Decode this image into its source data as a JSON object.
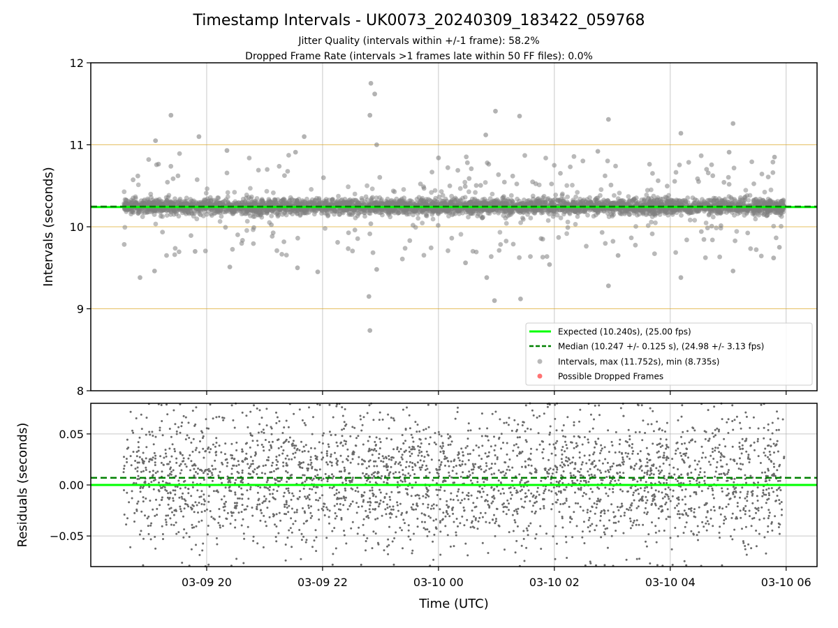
{
  "title": "Timestamp Intervals - UK0073_20240309_183422_059768",
  "subtitle_1": "Jitter Quality (intervals within +/-1 frame): 58.2%",
  "subtitle_2": "Dropped Frame Rate (intervals >1 frames late within 50 FF files): 0.0%",
  "colors": {
    "expected": "#00ff00",
    "median": "#008000",
    "points": "#808080",
    "dropped": "#ff0000",
    "hline": "#daa520",
    "grid": "#b0b0b0"
  },
  "chart_data": [
    {
      "type": "scatter",
      "ylabel": "Intervals (seconds)",
      "ylim": [
        8,
        12
      ],
      "xlim": [
        "2024-03-09T18:00",
        "2024-03-10T06:32"
      ],
      "yticks": [
        "8",
        "9",
        "10",
        "11",
        "12"
      ],
      "xticks": [
        "2024-03-09T20:00",
        "2024-03-09T22:00",
        "2024-03-10T00:00",
        "2024-03-10T02:00",
        "2024-03-10T04:00",
        "2024-03-10T06:00"
      ],
      "horizontal_reference_lines": [
        9,
        10,
        11
      ],
      "expected_value": 10.24,
      "median_value": 10.247,
      "grid": true,
      "legend_position": "lower-right",
      "legend": [
        "Expected (10.240s), (25.00 fps)",
        "Median (10.247 +/- 0.125 s), (24.98 +/- 3.13 fps)",
        "Intervals, max (11.752s), min (8.735s)",
        "Possible Dropped Frames"
      ],
      "x_start": "2024-03-09T18:34",
      "x_end": "2024-03-10T05:58",
      "n_points": 4000,
      "outliers": [
        {
          "x": "2024-03-09T19:52",
          "y": 11.1
        },
        {
          "x": "2024-03-09T19:07",
          "y": 11.05
        },
        {
          "x": "2024-03-09T19:23",
          "y": 11.36
        },
        {
          "x": "2024-03-09T20:21",
          "y": 10.93
        },
        {
          "x": "2024-03-09T21:41",
          "y": 11.1
        },
        {
          "x": "2024-03-09T21:32",
          "y": 10.91
        },
        {
          "x": "2024-03-09T22:50",
          "y": 11.75
        },
        {
          "x": "2024-03-09T22:54",
          "y": 11.62
        },
        {
          "x": "2024-03-09T22:49",
          "y": 11.36
        },
        {
          "x": "2024-03-09T22:56",
          "y": 11.0
        },
        {
          "x": "2024-03-10T00:00",
          "y": 10.84
        },
        {
          "x": "2024-03-10T00:59",
          "y": 11.41
        },
        {
          "x": "2024-03-10T00:49",
          "y": 11.12
        },
        {
          "x": "2024-03-10T01:24",
          "y": 11.35
        },
        {
          "x": "2024-03-10T02:56",
          "y": 11.31
        },
        {
          "x": "2024-03-10T02:45",
          "y": 10.92
        },
        {
          "x": "2024-03-10T04:11",
          "y": 11.14
        },
        {
          "x": "2024-03-10T05:05",
          "y": 11.26
        },
        {
          "x": "2024-03-10T05:01",
          "y": 10.91
        },
        {
          "x": "2024-03-10T05:48",
          "y": 10.85
        },
        {
          "x": "2024-03-09T18:51",
          "y": 9.38
        },
        {
          "x": "2024-03-09T19:06",
          "y": 9.46
        },
        {
          "x": "2024-03-09T20:24",
          "y": 9.51
        },
        {
          "x": "2024-03-09T21:34",
          "y": 9.5
        },
        {
          "x": "2024-03-09T21:55",
          "y": 9.45
        },
        {
          "x": "2024-03-09T22:48",
          "y": 9.15
        },
        {
          "x": "2024-03-09T22:49",
          "y": 8.735
        },
        {
          "x": "2024-03-09T22:56",
          "y": 9.48
        },
        {
          "x": "2024-03-10T00:28",
          "y": 9.56
        },
        {
          "x": "2024-03-10T00:50",
          "y": 9.38
        },
        {
          "x": "2024-03-10T00:58",
          "y": 9.1
        },
        {
          "x": "2024-03-10T01:25",
          "y": 9.12
        },
        {
          "x": "2024-03-10T01:55",
          "y": 9.54
        },
        {
          "x": "2024-03-10T02:56",
          "y": 9.28
        },
        {
          "x": "2024-03-10T03:06",
          "y": 9.65
        },
        {
          "x": "2024-03-10T04:11",
          "y": 9.38
        },
        {
          "x": "2024-03-10T05:05",
          "y": 9.46
        },
        {
          "x": "2024-03-10T05:47",
          "y": 9.62
        },
        {
          "x": "2024-03-10T05:53",
          "y": 9.75
        },
        {
          "x": "2024-03-09T19:48",
          "y": 9.7
        }
      ]
    },
    {
      "type": "scatter",
      "ylabel": "Residuals (seconds)",
      "xlabel": "Time (UTC)",
      "ylim": [
        -0.08,
        0.08
      ],
      "yticks": [
        "−0.05",
        "0.00",
        "0.05"
      ],
      "xtick_labels": [
        "03-09 20",
        "03-09 22",
        "03-10 00",
        "03-10 02",
        "03-10 04",
        "03-10 06"
      ],
      "expected_value": 0.0,
      "median_value": 0.007,
      "grid": true,
      "residual_spread": 0.08,
      "n_points": 3000
    }
  ]
}
